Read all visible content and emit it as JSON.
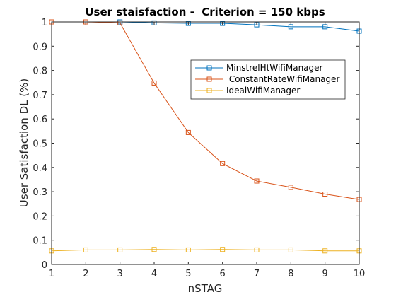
{
  "chart_data": {
    "type": "line",
    "title": "User staisfaction -  Criterion = 150 kbps",
    "xlabel": "nSTAG",
    "ylabel": "User Satisfaction DL (%)",
    "xlim": [
      1,
      10
    ],
    "ylim": [
      0,
      1
    ],
    "x": [
      1,
      2,
      3,
      4,
      5,
      6,
      7,
      8,
      9,
      10
    ],
    "x_ticks": [
      "1",
      "2",
      "3",
      "4",
      "5",
      "6",
      "7",
      "8",
      "9",
      "10"
    ],
    "y_ticks": [
      "0",
      "0.1",
      "0.2",
      "0.3",
      "0.4",
      "0.5",
      "0.6",
      "0.7",
      "0.8",
      "0.9",
      "1"
    ],
    "grid": false,
    "legend_position": "upper-right-inside",
    "marker": "square",
    "series": [
      {
        "name": "MinstrelHtWifiManager",
        "color": "#0072BD",
        "values": [
          1.0,
          1.0,
          1.0,
          0.996,
          0.994,
          0.994,
          0.988,
          0.98,
          0.98,
          0.962
        ]
      },
      {
        "name": " ConstantRateWifiManager",
        "color": "#D95319",
        "values": [
          1.0,
          1.0,
          0.996,
          0.748,
          0.544,
          0.416,
          0.344,
          0.318,
          0.29,
          0.268
        ]
      },
      {
        "name": "IdealWifiManager",
        "color": "#EDB120",
        "values": [
          0.056,
          0.06,
          0.06,
          0.062,
          0.06,
          0.062,
          0.06,
          0.06,
          0.056,
          0.056
        ]
      }
    ]
  }
}
